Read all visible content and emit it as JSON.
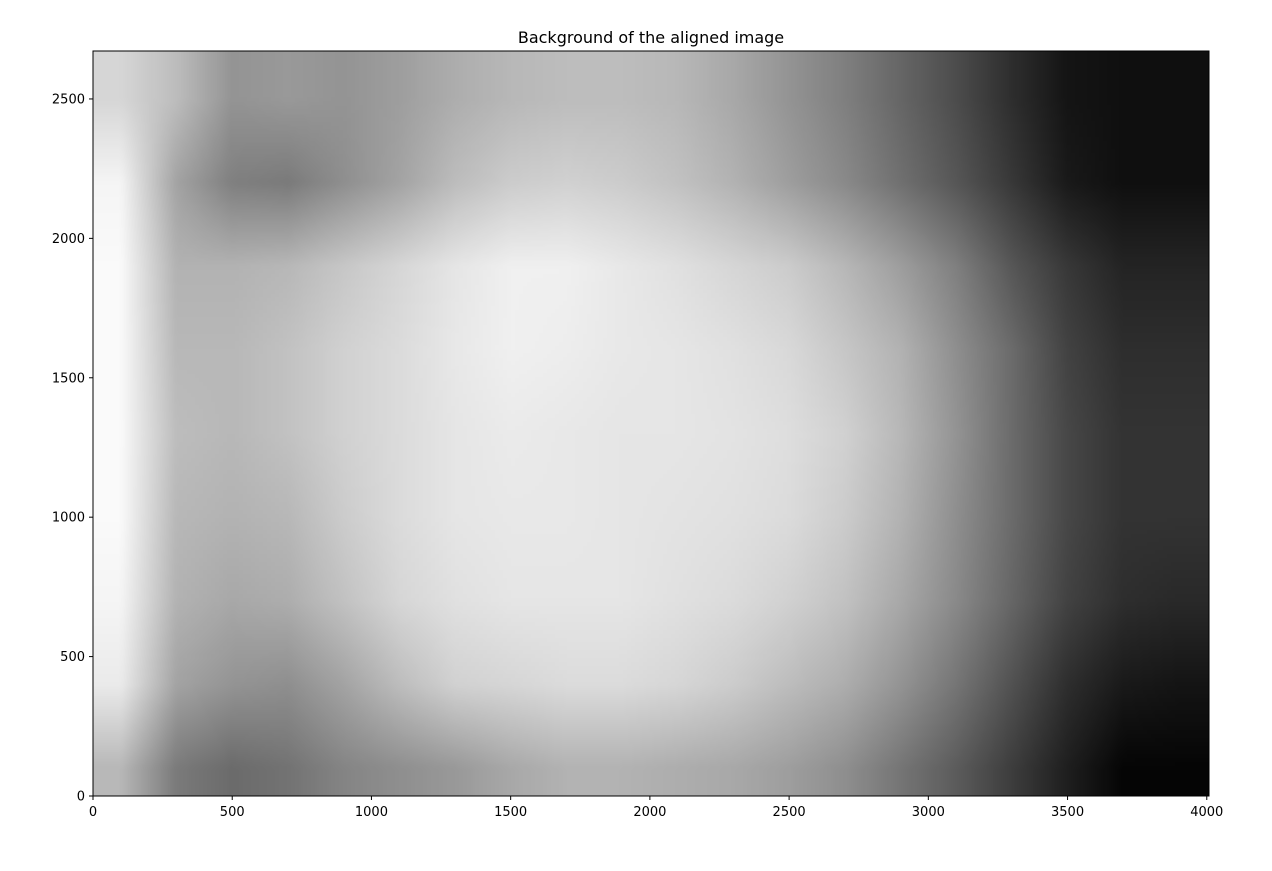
{
  "chart_data": {
    "type": "heatmap",
    "title": "Background of the aligned image",
    "xlabel": "",
    "ylabel": "",
    "xlim": [
      0,
      4008
    ],
    "ylim": [
      0,
      2672
    ],
    "x_ticks": [
      0,
      500,
      1000,
      1500,
      2000,
      2500,
      3000,
      3500,
      4000
    ],
    "y_ticks": [
      0,
      500,
      1000,
      1500,
      2000,
      2500
    ],
    "origin": "lower",
    "colormap": "gray",
    "grid": false,
    "colorbar": false,
    "x_centers": [
      100,
      300,
      500,
      700,
      900,
      1100,
      1300,
      1500,
      1700,
      1900,
      2100,
      2300,
      2500,
      2700,
      2900,
      3100,
      3300,
      3500,
      3700,
      3900
    ],
    "y_centers": [
      100,
      400,
      700,
      1000,
      1300,
      1600,
      1900,
      2200,
      2500
    ],
    "z_rows": [
      [
        0.72,
        0.48,
        0.42,
        0.45,
        0.52,
        0.56,
        0.6,
        0.66,
        0.7,
        0.7,
        0.68,
        0.66,
        0.62,
        0.56,
        0.46,
        0.36,
        0.24,
        0.12,
        0.02,
        0.02
      ],
      [
        0.92,
        0.64,
        0.58,
        0.56,
        0.64,
        0.74,
        0.82,
        0.84,
        0.86,
        0.86,
        0.84,
        0.8,
        0.74,
        0.68,
        0.58,
        0.46,
        0.32,
        0.18,
        0.1,
        0.08
      ],
      [
        0.96,
        0.7,
        0.66,
        0.68,
        0.76,
        0.84,
        0.88,
        0.9,
        0.9,
        0.9,
        0.88,
        0.86,
        0.82,
        0.76,
        0.66,
        0.54,
        0.4,
        0.26,
        0.18,
        0.16
      ],
      [
        0.98,
        0.72,
        0.7,
        0.72,
        0.8,
        0.86,
        0.9,
        0.91,
        0.91,
        0.9,
        0.89,
        0.88,
        0.86,
        0.8,
        0.7,
        0.56,
        0.42,
        0.28,
        0.2,
        0.2
      ],
      [
        0.98,
        0.74,
        0.72,
        0.76,
        0.82,
        0.86,
        0.9,
        0.92,
        0.91,
        0.9,
        0.9,
        0.89,
        0.87,
        0.82,
        0.72,
        0.58,
        0.42,
        0.28,
        0.2,
        0.2
      ],
      [
        0.98,
        0.72,
        0.72,
        0.76,
        0.82,
        0.86,
        0.91,
        0.94,
        0.93,
        0.91,
        0.9,
        0.88,
        0.85,
        0.78,
        0.7,
        0.56,
        0.42,
        0.26,
        0.18,
        0.18
      ],
      [
        0.98,
        0.7,
        0.7,
        0.72,
        0.78,
        0.84,
        0.9,
        0.94,
        0.94,
        0.91,
        0.88,
        0.84,
        0.8,
        0.72,
        0.62,
        0.5,
        0.34,
        0.22,
        0.14,
        0.14
      ],
      [
        0.96,
        0.64,
        0.5,
        0.48,
        0.56,
        0.64,
        0.74,
        0.8,
        0.82,
        0.8,
        0.76,
        0.7,
        0.62,
        0.54,
        0.44,
        0.34,
        0.22,
        0.1,
        0.06,
        0.06
      ],
      [
        0.84,
        0.74,
        0.58,
        0.6,
        0.58,
        0.62,
        0.68,
        0.72,
        0.74,
        0.74,
        0.72,
        0.66,
        0.58,
        0.5,
        0.4,
        0.3,
        0.18,
        0.08,
        0.06,
        0.06
      ]
    ]
  }
}
